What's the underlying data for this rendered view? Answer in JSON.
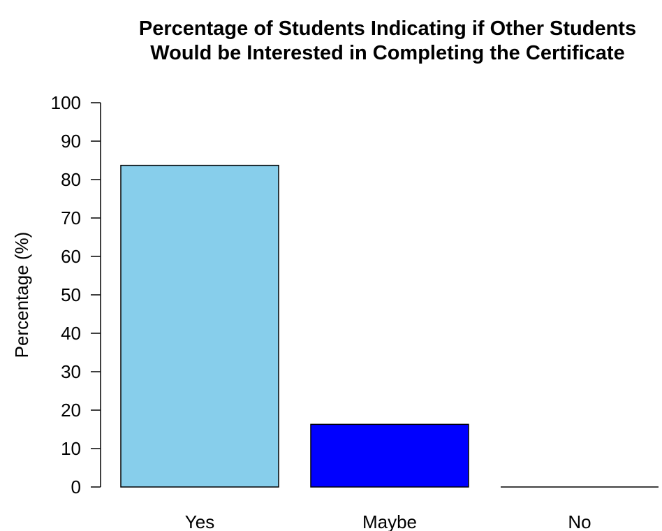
{
  "chart_data": {
    "type": "bar",
    "title_lines": [
      "Percentage of Students Indicating if Other Students",
      "Would be Interested in Completing the Certificate"
    ],
    "xlabel": "",
    "ylabel": "Percentage (%)",
    "categories": [
      "Yes",
      "Maybe",
      "No"
    ],
    "values": [
      83.7,
      16.3,
      0
    ],
    "colors": [
      "#87CEEB",
      "#0000FF",
      "#808080"
    ],
    "ylim": [
      0,
      100
    ],
    "yticks": [
      0,
      10,
      20,
      30,
      40,
      50,
      60,
      70,
      80,
      90,
      100
    ],
    "grid": false,
    "legend": "none"
  }
}
